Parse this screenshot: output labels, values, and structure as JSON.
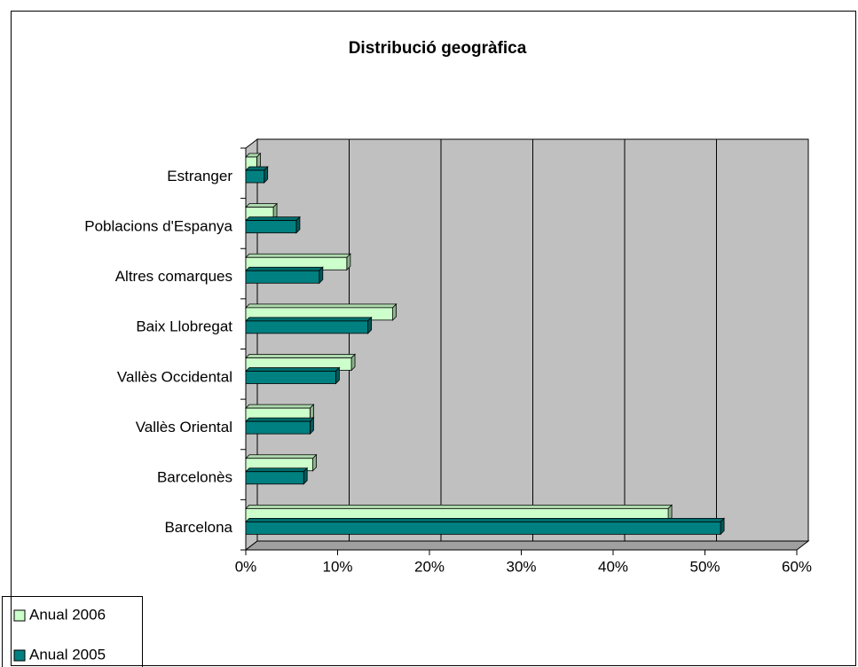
{
  "chart_data": {
    "type": "bar",
    "orientation": "horizontal",
    "three_d": true,
    "title": "Distribució geogràfica",
    "categories": [
      "Barcelona",
      "Barcelonès",
      "Vallès Oriental",
      "Vallès Occidental",
      "Baix Llobregat",
      "Altres comarques",
      "Poblacions d'Espanya",
      "Estranger"
    ],
    "series": [
      {
        "name": "Anual 2006",
        "color": "#ccffcc",
        "values": [
          46,
          7.3,
          7,
          11.5,
          16,
          11,
          3,
          1.2
        ]
      },
      {
        "name": "Anual 2005",
        "color": "#008080",
        "values": [
          51.7,
          6.3,
          7,
          9.8,
          13.3,
          8,
          5.5,
          2
        ]
      }
    ],
    "xlim": [
      0,
      60
    ],
    "xticks": [
      {
        "value": 0,
        "label": "0%"
      },
      {
        "value": 10,
        "label": "10%"
      },
      {
        "value": 20,
        "label": "20%"
      },
      {
        "value": 30,
        "label": "30%"
      },
      {
        "value": 40,
        "label": "40%"
      },
      {
        "value": 50,
        "label": "50%"
      },
      {
        "value": 60,
        "label": "60%"
      }
    ],
    "grid": true,
    "legend": "bottom-left",
    "wall_color": "#c0c0c0"
  }
}
